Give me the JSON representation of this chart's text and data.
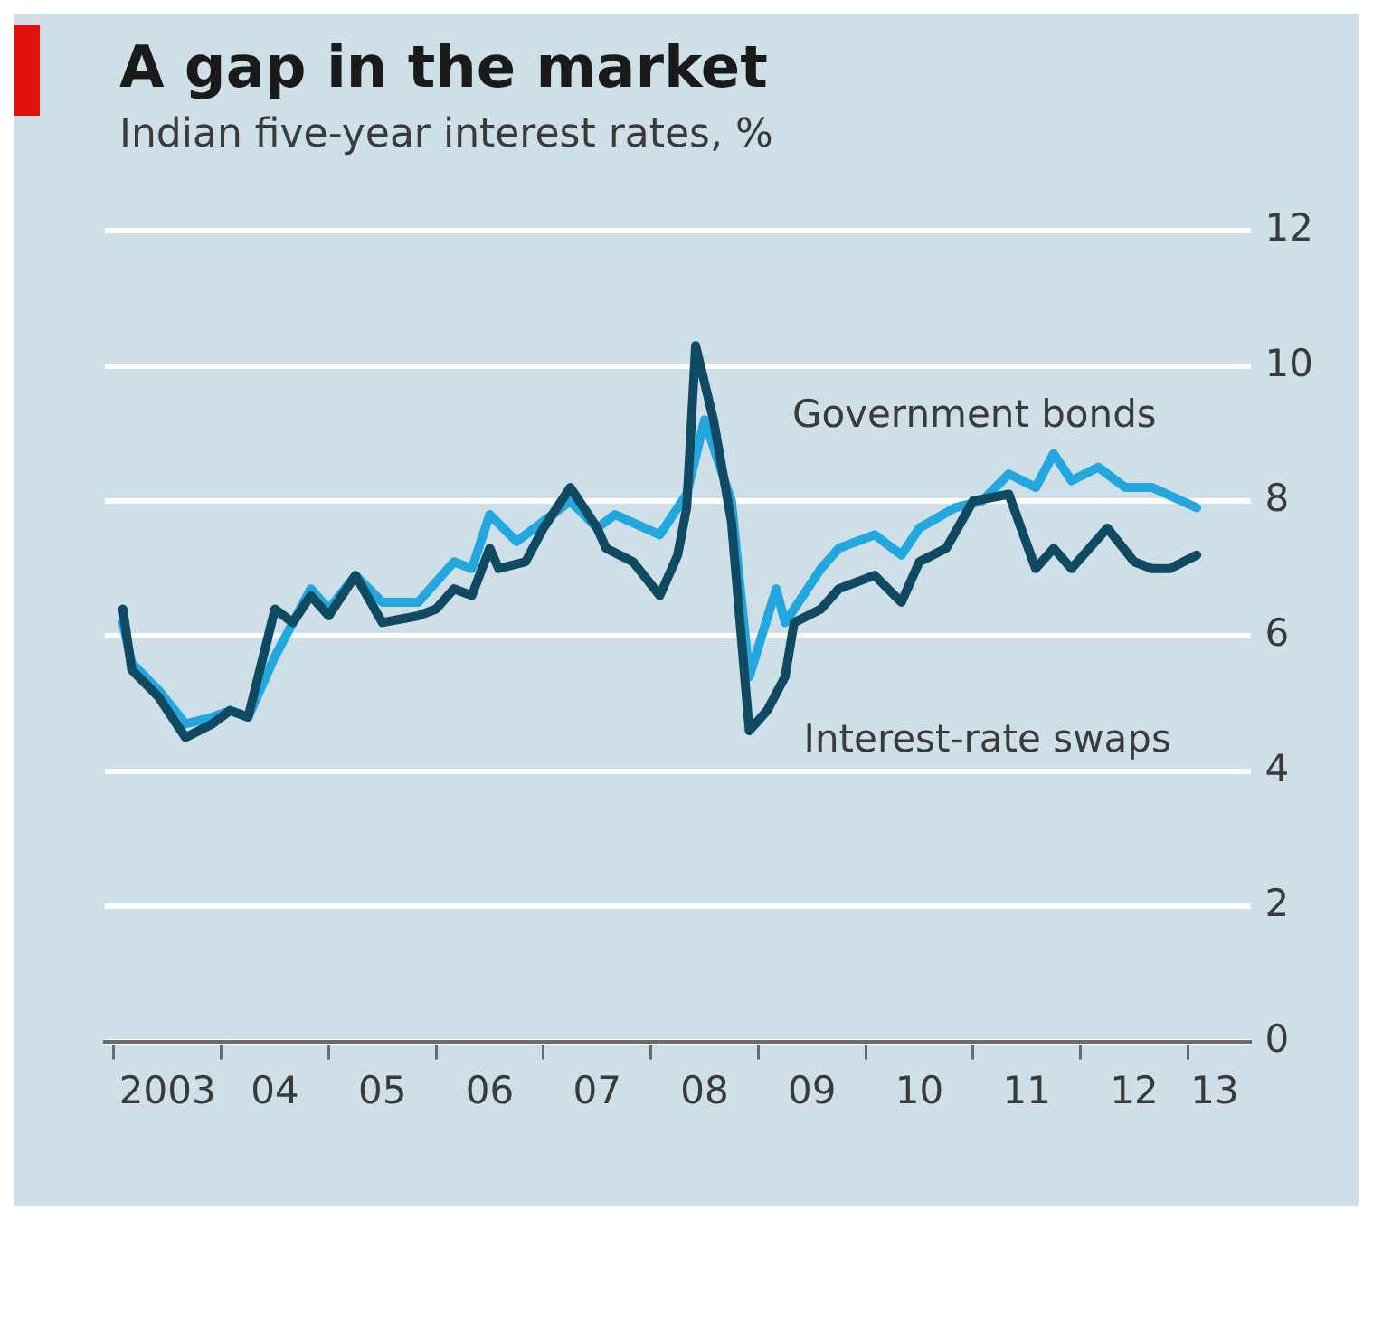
{
  "chart_data": {
    "type": "line",
    "title": "A gap in the market",
    "subtitle": "Indian five-year interest rates, %",
    "series": [
      {
        "name": "Government bonds",
        "color": "#22a7df",
        "x": [
          "2003-02",
          "2003-03",
          "2003-06",
          "2003-09",
          "2003-12",
          "2004-02",
          "2004-04",
          "2004-07",
          "2004-11",
          "2005-01",
          "2005-04",
          "2005-07",
          "2005-11",
          "2006-03",
          "2006-05",
          "2006-07",
          "2006-10",
          "2007-01",
          "2007-04",
          "2007-07",
          "2007-09",
          "2008-02",
          "2008-05",
          "2008-07",
          "2008-10",
          "2008-12",
          "2009-03",
          "2009-04",
          "2009-08",
          "2009-10",
          "2010-02",
          "2010-05",
          "2010-07",
          "2010-11",
          "2011-02",
          "2011-05",
          "2011-08",
          "2011-10",
          "2011-12",
          "2012-03",
          "2012-06",
          "2012-09",
          "2013-02"
        ],
        "values": [
          6.2,
          5.6,
          5.2,
          4.7,
          4.8,
          4.9,
          4.8,
          5.7,
          6.7,
          6.4,
          6.9,
          6.5,
          6.5,
          7.1,
          7.0,
          7.8,
          7.4,
          7.7,
          8.0,
          7.6,
          7.8,
          7.5,
          8.1,
          9.2,
          8.0,
          5.4,
          6.7,
          6.2,
          7.0,
          7.3,
          7.5,
          7.2,
          7.6,
          7.9,
          8.0,
          8.4,
          8.2,
          8.7,
          8.3,
          8.5,
          8.2,
          8.2,
          7.9
        ]
      },
      {
        "name": "Interest-rate swaps",
        "color": "#0f4a62",
        "x": [
          "2003-02",
          "2003-03",
          "2003-06",
          "2003-09",
          "2003-12",
          "2004-02",
          "2004-04",
          "2004-07",
          "2004-09",
          "2004-11",
          "2005-01",
          "2005-04",
          "2005-07",
          "2005-11",
          "2006-01",
          "2006-03",
          "2006-05",
          "2006-07",
          "2006-08",
          "2006-11",
          "2007-01",
          "2007-04",
          "2007-07",
          "2007-08",
          "2007-11",
          "2008-02",
          "2008-04",
          "2008-05",
          "2008-06",
          "2008-08",
          "2008-10",
          "2008-12",
          "2009-02",
          "2009-04",
          "2009-05",
          "2009-08",
          "2009-10",
          "2010-02",
          "2010-05",
          "2010-07",
          "2010-10",
          "2011-01",
          "2011-05",
          "2011-08",
          "2011-10",
          "2011-12",
          "2012-04",
          "2012-07",
          "2012-09",
          "2012-11",
          "2013-02"
        ],
        "values": [
          6.4,
          5.5,
          5.1,
          4.5,
          4.7,
          4.9,
          4.8,
          6.4,
          6.2,
          6.6,
          6.3,
          6.9,
          6.2,
          6.3,
          6.4,
          6.7,
          6.6,
          7.3,
          7.0,
          7.1,
          7.6,
          8.2,
          7.6,
          7.3,
          7.1,
          6.6,
          7.2,
          7.9,
          10.3,
          9.2,
          7.7,
          4.6,
          4.9,
          5.4,
          6.2,
          6.4,
          6.7,
          6.9,
          6.5,
          7.1,
          7.3,
          8.0,
          8.1,
          7.0,
          7.3,
          7.0,
          7.6,
          7.1,
          7.0,
          7.0,
          7.2
        ]
      }
    ],
    "xlim": [
      "2002-12",
      "2013-08"
    ],
    "xticks": [
      {
        "value": "2003-01",
        "label": null
      },
      {
        "value": "2003-07",
        "label": "2003"
      },
      {
        "value": "2004-01",
        "label": null
      },
      {
        "value": "2004-07",
        "label": "04"
      },
      {
        "value": "2005-01",
        "label": null
      },
      {
        "value": "2005-07",
        "label": "05"
      },
      {
        "value": "2006-01",
        "label": null
      },
      {
        "value": "2006-07",
        "label": "06"
      },
      {
        "value": "2007-01",
        "label": null
      },
      {
        "value": "2007-07",
        "label": "07"
      },
      {
        "value": "2008-01",
        "label": null
      },
      {
        "value": "2008-07",
        "label": "08"
      },
      {
        "value": "2009-01",
        "label": null
      },
      {
        "value": "2009-07",
        "label": "09"
      },
      {
        "value": "2010-01",
        "label": null
      },
      {
        "value": "2010-07",
        "label": "10"
      },
      {
        "value": "2011-01",
        "label": null
      },
      {
        "value": "2011-07",
        "label": "11"
      },
      {
        "value": "2012-01",
        "label": null
      },
      {
        "value": "2012-07",
        "label": "12"
      },
      {
        "value": "2013-01",
        "label": null
      },
      {
        "value": "2013-04",
        "label": "13"
      }
    ],
    "ylim": [
      0,
      12
    ],
    "yticks": [
      0,
      2,
      4,
      6,
      8,
      10,
      12
    ],
    "grid": "y",
    "legend": false,
    "marker": "none",
    "line_style": "solid"
  }
}
